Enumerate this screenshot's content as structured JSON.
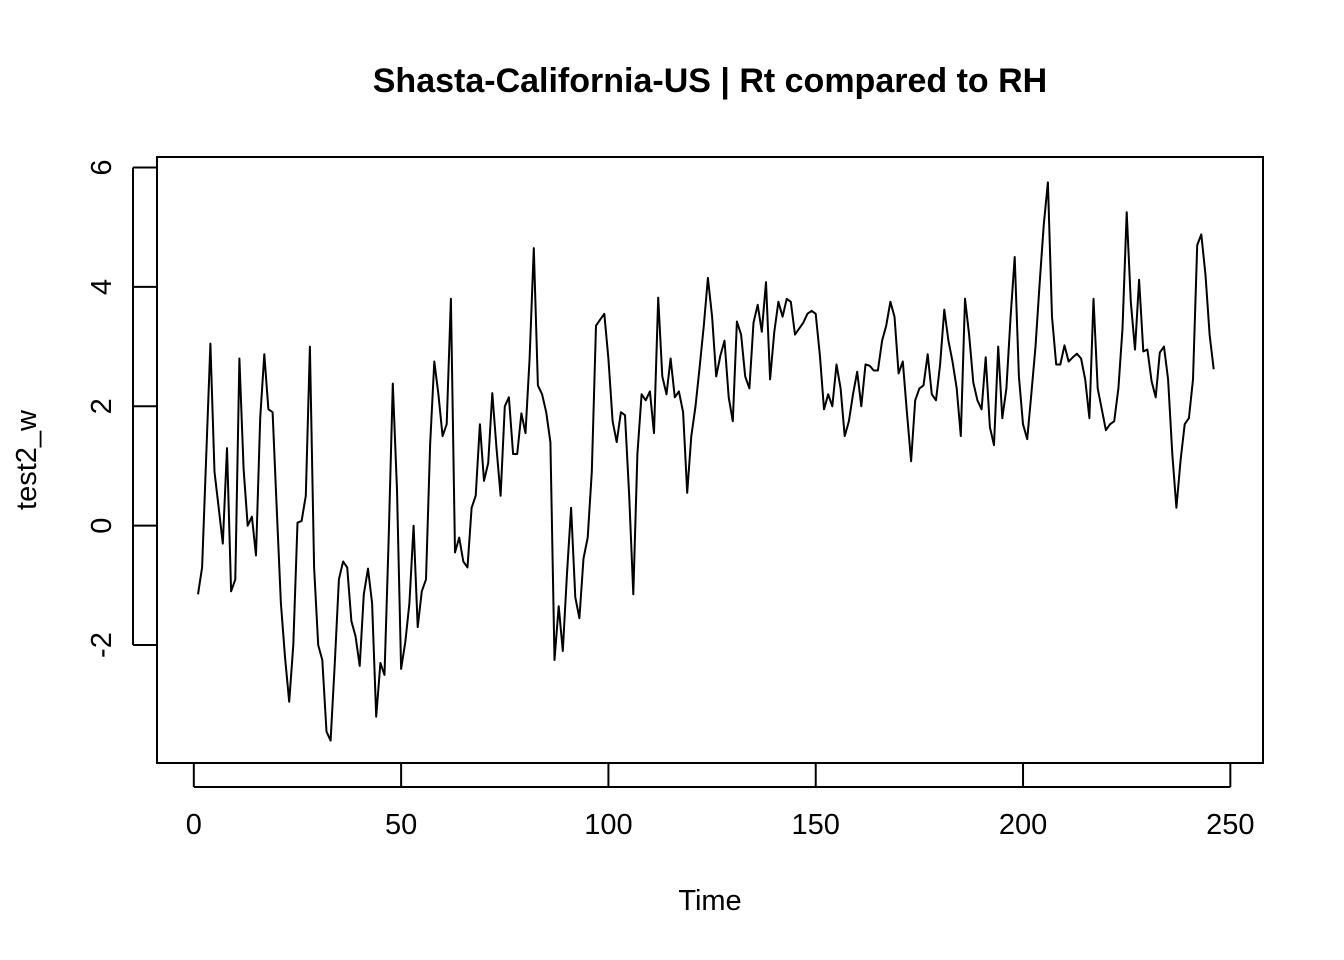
{
  "chart_data": {
    "type": "line",
    "title": "Shasta-California-US | Rt compared to RH",
    "xlabel": "Time",
    "ylabel": "test2_w",
    "xlim": [
      1,
      248
    ],
    "ylim": [
      -3.6,
      5.8
    ],
    "xticks": [
      0,
      50,
      100,
      150,
      200,
      250
    ],
    "yticks": [
      -2,
      0,
      2,
      4,
      6
    ],
    "xtick_labels": [
      "0",
      "50",
      "100",
      "150",
      "200",
      "250"
    ],
    "ytick_labels": [
      "-2",
      "0",
      "2",
      "4",
      "6"
    ],
    "grid": false,
    "series": [
      {
        "values": [
          -1.15,
          -0.7,
          1.2,
          3.05,
          0.9,
          0.3,
          -0.3,
          1.3,
          -1.1,
          -0.9,
          2.8,
          0.95,
          0.0,
          0.15,
          -0.5,
          1.8,
          2.87,
          1.95,
          1.9,
          0.3,
          -1.3,
          -2.2,
          -2.95,
          -2.0,
          0.05,
          0.08,
          0.5,
          3.0,
          -0.7,
          -2.0,
          -2.25,
          -3.45,
          -3.6,
          -2.3,
          -0.9,
          -0.6,
          -0.7,
          -1.6,
          -1.85,
          -2.35,
          -1.15,
          -0.72,
          -1.3,
          -3.2,
          -2.3,
          -2.5,
          -0.2,
          2.38,
          0.6,
          -2.4,
          -1.95,
          -1.3,
          0.0,
          -1.7,
          -1.1,
          -0.9,
          1.35,
          2.75,
          2.2,
          1.5,
          1.7,
          3.8,
          -0.45,
          -0.2,
          -0.6,
          -0.7,
          0.3,
          0.5,
          1.7,
          0.75,
          1.05,
          2.22,
          1.3,
          0.5,
          2.0,
          2.15,
          1.2,
          1.2,
          1.88,
          1.55,
          2.8,
          4.65,
          2.35,
          2.2,
          1.9,
          1.4,
          -2.25,
          -1.35,
          -2.1,
          -0.8,
          0.3,
          -1.2,
          -1.55,
          -0.55,
          -0.2,
          0.9,
          3.35,
          3.45,
          3.55,
          2.8,
          1.75,
          1.4,
          1.9,
          1.85,
          0.5,
          -1.15,
          1.2,
          2.2,
          2.1,
          2.25,
          1.55,
          3.82,
          2.5,
          2.2,
          2.8,
          2.15,
          2.25,
          1.9,
          0.55,
          1.5,
          2.0,
          2.65,
          3.35,
          4.15,
          3.5,
          2.5,
          2.85,
          3.1,
          2.15,
          1.75,
          3.42,
          3.2,
          2.5,
          2.3,
          3.4,
          3.7,
          3.25,
          4.08,
          2.45,
          3.25,
          3.75,
          3.5,
          3.8,
          3.75,
          3.2,
          3.3,
          3.4,
          3.55,
          3.6,
          3.55,
          2.85,
          1.95,
          2.2,
          2.0,
          2.7,
          2.3,
          1.5,
          1.75,
          2.2,
          2.58,
          2.0,
          2.7,
          2.68,
          2.6,
          2.6,
          3.1,
          3.35,
          3.75,
          3.5,
          2.55,
          2.75,
          1.9,
          1.08,
          2.1,
          2.3,
          2.35,
          2.87,
          2.2,
          2.1,
          2.7,
          3.62,
          3.1,
          2.75,
          2.3,
          1.5,
          3.8,
          3.2,
          2.4,
          2.1,
          1.95,
          2.82,
          1.65,
          1.35,
          3.0,
          1.8,
          2.3,
          3.5,
          4.5,
          2.5,
          1.7,
          1.45,
          2.2,
          3.0,
          4.05,
          5.05,
          5.75,
          3.5,
          2.7,
          2.7,
          3.02,
          2.75,
          2.82,
          2.88,
          2.8,
          2.45,
          1.8,
          3.8,
          2.3,
          1.95,
          1.6,
          1.7,
          1.75,
          2.3,
          3.3,
          5.25,
          3.75,
          2.95,
          4.12,
          2.92,
          2.95,
          2.42,
          2.15,
          2.9,
          3.0,
          2.45,
          1.2,
          0.3,
          1.1,
          1.7,
          1.8,
          2.45,
          4.7,
          4.88,
          4.2,
          3.2,
          2.62
        ]
      }
    ]
  }
}
